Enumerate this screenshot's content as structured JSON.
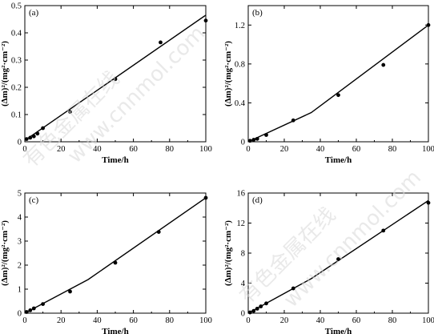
{
  "watermark": {
    "line1": "有色金属在线",
    "line2": "www.cnnmol.com"
  },
  "chart_data": [
    {
      "type": "scatter",
      "panel_label": "(a)",
      "xlabel": "Time/h",
      "ylabel": "(Δm)²/(mg²·cm⁻²)",
      "xlim": [
        0,
        100
      ],
      "ylim": [
        0,
        0.5
      ],
      "xticks": [
        "0",
        "20",
        "40",
        "60",
        "80",
        "100"
      ],
      "yticks": [
        "0",
        "0.1",
        "0.2",
        "0.3",
        "0.4",
        "0.5"
      ],
      "xtick_values": [
        0,
        20,
        40,
        60,
        80,
        100
      ],
      "ytick_values": [
        0,
        0.1,
        0.2,
        0.3,
        0.4,
        0.5
      ],
      "points": {
        "x": [
          1,
          3,
          5,
          7,
          10,
          25,
          50,
          75,
          100
        ],
        "y": [
          0.01,
          0.015,
          0.02,
          0.03,
          0.05,
          0.11,
          0.23,
          0.365,
          0.445
        ]
      },
      "fit_line": {
        "x": [
          0,
          100
        ],
        "y": [
          0.005,
          0.465
        ]
      }
    },
    {
      "type": "scatter",
      "panel_label": "(b)",
      "xlabel": "Time/h",
      "ylabel": "(Δm)²/(mg²·cm⁻²)",
      "xlim": [
        0,
        100
      ],
      "ylim": [
        0,
        1.4
      ],
      "xticks": [
        "0",
        "20",
        "40",
        "60",
        "80",
        "100"
      ],
      "yticks": [
        "0",
        "0.4",
        "0.8",
        "1.2"
      ],
      "xtick_values": [
        0,
        20,
        40,
        60,
        80,
        100
      ],
      "ytick_values": [
        0,
        0.4,
        0.8,
        1.2
      ],
      "points": {
        "x": [
          1,
          3,
          5,
          10,
          25,
          50,
          75,
          100
        ],
        "y": [
          0.01,
          0.02,
          0.03,
          0.07,
          0.22,
          0.48,
          0.79,
          1.2
        ]
      },
      "fit_line": {
        "x": [
          0,
          35,
          100
        ],
        "y": [
          0,
          0.3,
          1.2
        ]
      }
    },
    {
      "type": "scatter",
      "panel_label": "(c)",
      "xlabel": "Time/h",
      "ylabel": "(Δm)²/(mg²·cm⁻²)",
      "xlim": [
        0,
        100
      ],
      "ylim": [
        0,
        5
      ],
      "xticks": [
        "0",
        "20",
        "40",
        "60",
        "80",
        "100"
      ],
      "yticks": [
        "0",
        "1",
        "2",
        "3",
        "4",
        "5"
      ],
      "xtick_values": [
        0,
        20,
        40,
        60,
        80,
        100
      ],
      "ytick_values": [
        0,
        1,
        2,
        3,
        4,
        5
      ],
      "points": {
        "x": [
          1,
          3,
          5,
          10,
          25,
          50,
          74,
          100
        ],
        "y": [
          0.05,
          0.12,
          0.2,
          0.38,
          0.9,
          2.1,
          3.38,
          4.8
        ]
      },
      "fit_line": {
        "x": [
          0,
          35,
          100
        ],
        "y": [
          0,
          1.4,
          4.8
        ]
      }
    },
    {
      "type": "scatter",
      "panel_label": "(d)",
      "xlabel": "Time/h",
      "ylabel": "(Δm)²/(mg²·cm⁻²)",
      "xlim": [
        0,
        100
      ],
      "ylim": [
        0,
        16
      ],
      "xticks": [
        "0",
        "20",
        "40",
        "60",
        "80",
        "100"
      ],
      "yticks": [
        "0",
        "4",
        "8",
        "12",
        "16"
      ],
      "xtick_values": [
        0,
        20,
        40,
        60,
        80,
        100
      ],
      "ytick_values": [
        0,
        4,
        8,
        12,
        16
      ],
      "points": {
        "x": [
          1,
          3,
          5,
          7,
          10,
          25,
          50,
          75,
          100
        ],
        "y": [
          0.1,
          0.3,
          0.6,
          0.9,
          1.3,
          3.3,
          7.2,
          11.0,
          14.7
        ]
      },
      "fit_line": {
        "x": [
          0,
          35,
          100
        ],
        "y": [
          0,
          4.6,
          15.0
        ]
      }
    }
  ]
}
